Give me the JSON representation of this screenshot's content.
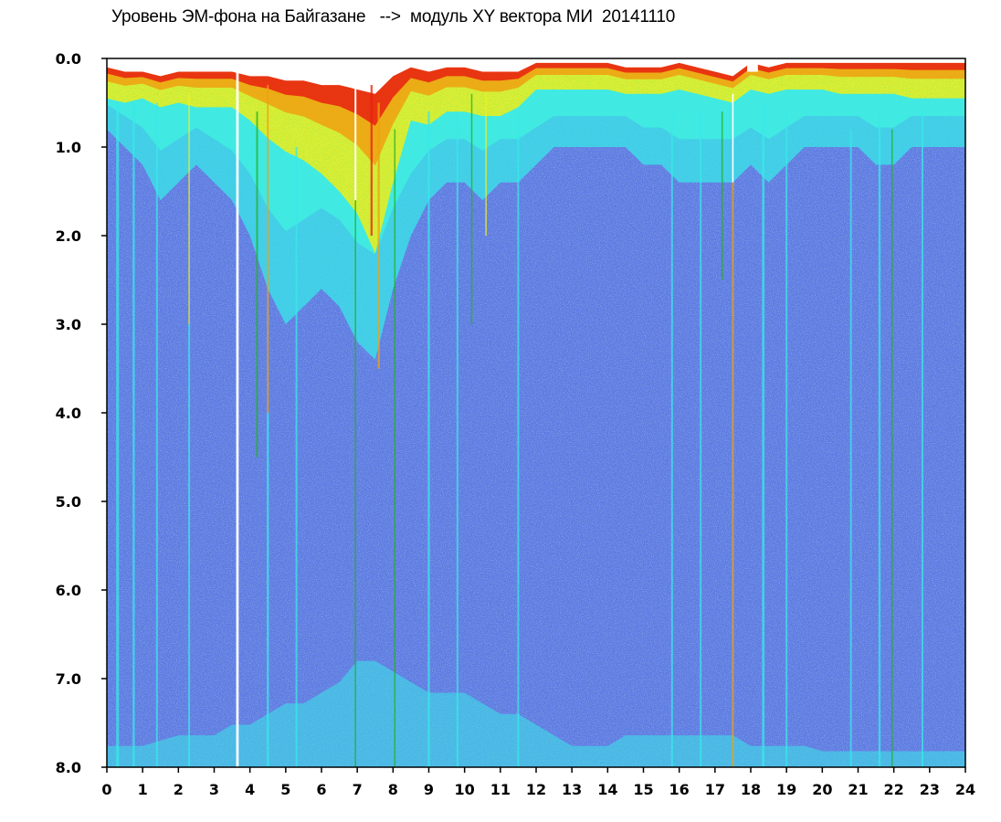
{
  "chart_data": {
    "type": "heatmap",
    "title": "Уровень ЭМ-фона на Байгазане   -->  модуль XY вектора МИ  20141110",
    "xlabel": "",
    "ylabel": "",
    "xlim": [
      0,
      24
    ],
    "ylim": [
      0,
      8
    ],
    "y_axis_inverted": true,
    "x_ticks": [
      "0",
      "1",
      "2",
      "3",
      "4",
      "5",
      "6",
      "7",
      "8",
      "9",
      "10",
      "11",
      "12",
      "13",
      "14",
      "15",
      "16",
      "17",
      "18",
      "19",
      "20",
      "21",
      "22",
      "23",
      "24"
    ],
    "y_ticks": [
      "0.0",
      "1.0",
      "2.0",
      "3.0",
      "4.0",
      "5.0",
      "6.0",
      "7.0",
      "8.0"
    ],
    "colorscale": [
      "#1a1ae0",
      "#5a78e8",
      "#7ec8f0",
      "#38e8e8",
      "#22b022",
      "#f0f020",
      "#f0a010",
      "#e82010"
    ],
    "background_color": "#5f80e0",
    "plot_background": "#ffffff",
    "grid": false,
    "legend": "none",
    "high_intensity_band": {
      "x": [
        0,
        0.5,
        1,
        1.5,
        2,
        2.5,
        3,
        3.5,
        4,
        4.5,
        5,
        5.5,
        6,
        6.5,
        7,
        7.5,
        8,
        8.5,
        9,
        9.5,
        10,
        10.5,
        11,
        11.5,
        12,
        12.5,
        13,
        13.5,
        14,
        14.5,
        15,
        15.5,
        16,
        16.5,
        17,
        17.5,
        18,
        18.5,
        19,
        19.5,
        20,
        20.5,
        21,
        21.5,
        22,
        22.5,
        23,
        23.5,
        24
      ],
      "top": [
        0.1,
        0.15,
        0.15,
        0.2,
        0.15,
        0.15,
        0.15,
        0.15,
        0.2,
        0.2,
        0.25,
        0.25,
        0.3,
        0.3,
        0.35,
        0.4,
        0.2,
        0.1,
        0.15,
        0.1,
        0.1,
        0.15,
        0.15,
        0.15,
        0.05,
        0.05,
        0.05,
        0.05,
        0.05,
        0.1,
        0.1,
        0.1,
        0.05,
        0.1,
        0.15,
        0.2,
        0.05,
        0.1,
        0.05,
        0.05,
        0.05,
        0.05,
        0.05,
        0.05,
        0.05,
        0.05,
        0.05,
        0.05,
        0.05
      ],
      "warm_depth": [
        0.35,
        0.35,
        0.3,
        0.35,
        0.35,
        0.4,
        0.4,
        0.4,
        0.5,
        0.7,
        0.8,
        0.9,
        1.0,
        1.2,
        1.4,
        1.8,
        1.2,
        0.6,
        0.6,
        0.5,
        0.5,
        0.5,
        0.5,
        0.4,
        0.3,
        0.3,
        0.3,
        0.3,
        0.3,
        0.3,
        0.3,
        0.3,
        0.3,
        0.3,
        0.3,
        0.3,
        0.3,
        0.3,
        0.3,
        0.3,
        0.3,
        0.35,
        0.35,
        0.35,
        0.35,
        0.4,
        0.4,
        0.4,
        0.4
      ],
      "cyan_depth": [
        0.8,
        1.0,
        1.2,
        1.6,
        1.4,
        1.2,
        1.4,
        1.6,
        2.0,
        2.6,
        3.0,
        2.8,
        2.6,
        2.8,
        3.2,
        3.4,
        2.6,
        2.0,
        1.6,
        1.4,
        1.4,
        1.6,
        1.4,
        1.4,
        1.2,
        1.0,
        1.0,
        1.0,
        1.0,
        1.0,
        1.2,
        1.2,
        1.4,
        1.4,
        1.4,
        1.4,
        1.2,
        1.4,
        1.2,
        1.0,
        1.0,
        1.0,
        1.0,
        1.2,
        1.2,
        1.0,
        1.0,
        1.0,
        1.0
      ],
      "bottom_cyan": [
        0.2,
        0.2,
        0.2,
        0.25,
        0.3,
        0.3,
        0.3,
        0.4,
        0.4,
        0.5,
        0.6,
        0.6,
        0.7,
        0.8,
        1.0,
        1.0,
        0.9,
        0.8,
        0.7,
        0.7,
        0.7,
        0.6,
        0.5,
        0.5,
        0.4,
        0.3,
        0.2,
        0.2,
        0.2,
        0.3,
        0.3,
        0.3,
        0.3,
        0.3,
        0.3,
        0.3,
        0.2,
        0.2,
        0.2,
        0.2,
        0.15,
        0.15,
        0.15,
        0.15,
        0.15,
        0.15,
        0.15,
        0.15,
        0.15
      ]
    },
    "vertical_streaks": [
      {
        "x": 0.3,
        "color": "#38e8e8",
        "width": 0.08,
        "from": 0.5,
        "to": 8.0
      },
      {
        "x": 0.75,
        "color": "#38e8e8",
        "width": 0.06,
        "from": 0.5,
        "to": 8.0
      },
      {
        "x": 1.4,
        "color": "#38e8e8",
        "width": 0.05,
        "from": 0.5,
        "to": 8.0
      },
      {
        "x": 2.3,
        "color": "#f0f020",
        "width": 0.04,
        "from": 0.4,
        "to": 3.0
      },
      {
        "x": 2.3,
        "color": "#38e8e8",
        "width": 0.05,
        "from": 3.0,
        "to": 8.0
      },
      {
        "x": 3.65,
        "color": "#ffffff",
        "width": 0.07,
        "from": 0.1,
        "to": 8.0
      },
      {
        "x": 4.2,
        "color": "#22b022",
        "width": 0.05,
        "from": 0.6,
        "to": 4.5
      },
      {
        "x": 4.5,
        "color": "#f0a010",
        "width": 0.05,
        "from": 0.3,
        "to": 4.0
      },
      {
        "x": 4.5,
        "color": "#38e8e8",
        "width": 0.06,
        "from": 4.0,
        "to": 8.0
      },
      {
        "x": 5.3,
        "color": "#38e8e8",
        "width": 0.05,
        "from": 1.0,
        "to": 8.0
      },
      {
        "x": 6.95,
        "color": "#ffffff",
        "width": 0.05,
        "from": 0.2,
        "to": 1.6
      },
      {
        "x": 6.95,
        "color": "#22b022",
        "width": 0.04,
        "from": 1.6,
        "to": 8.0
      },
      {
        "x": 7.4,
        "color": "#e82010",
        "width": 0.06,
        "from": 0.3,
        "to": 2.0
      },
      {
        "x": 7.6,
        "color": "#f0a010",
        "width": 0.06,
        "from": 0.5,
        "to": 3.5
      },
      {
        "x": 8.05,
        "color": "#22b022",
        "width": 0.04,
        "from": 0.8,
        "to": 8.0
      },
      {
        "x": 9.0,
        "color": "#38e8e8",
        "width": 0.06,
        "from": 0.6,
        "to": 8.0
      },
      {
        "x": 9.8,
        "color": "#38e8e8",
        "width": 0.05,
        "from": 0.6,
        "to": 8.0
      },
      {
        "x": 10.2,
        "color": "#22b022",
        "width": 0.04,
        "from": 0.4,
        "to": 3.0
      },
      {
        "x": 10.6,
        "color": "#f0f020",
        "width": 0.04,
        "from": 0.4,
        "to": 2.0
      },
      {
        "x": 11.5,
        "color": "#38e8e8",
        "width": 0.05,
        "from": 0.6,
        "to": 8.0
      },
      {
        "x": 15.8,
        "color": "#38e8e8",
        "width": 0.05,
        "from": 0.6,
        "to": 8.0
      },
      {
        "x": 16.6,
        "color": "#38e8e8",
        "width": 0.05,
        "from": 0.6,
        "to": 8.0
      },
      {
        "x": 17.2,
        "color": "#22b022",
        "width": 0.04,
        "from": 0.6,
        "to": 2.5
      },
      {
        "x": 17.5,
        "color": "#ffffff",
        "width": 0.04,
        "from": 0.4,
        "to": 1.4
      },
      {
        "x": 17.5,
        "color": "#f0a010",
        "width": 0.05,
        "from": 1.4,
        "to": 8.0
      },
      {
        "x": 18.05,
        "color": "#e82010",
        "width": 0.25,
        "from": 0.0,
        "to": 0.1
      },
      {
        "x": 18.05,
        "color": "#ffffff",
        "width": 0.3,
        "from": 0.0,
        "to": 0.15
      },
      {
        "x": 18.35,
        "color": "#38e8e8",
        "width": 0.07,
        "from": 0.5,
        "to": 8.0
      },
      {
        "x": 19.0,
        "color": "#38e8e8",
        "width": 0.05,
        "from": 0.6,
        "to": 8.0
      },
      {
        "x": 20.8,
        "color": "#38e8e8",
        "width": 0.05,
        "from": 0.8,
        "to": 8.0
      },
      {
        "x": 21.6,
        "color": "#38e8e8",
        "width": 0.06,
        "from": 0.6,
        "to": 8.0
      },
      {
        "x": 21.95,
        "color": "#22b022",
        "width": 0.04,
        "from": 0.8,
        "to": 8.0
      },
      {
        "x": 22.8,
        "color": "#38e8e8",
        "width": 0.05,
        "from": 0.6,
        "to": 8.0
      }
    ]
  }
}
